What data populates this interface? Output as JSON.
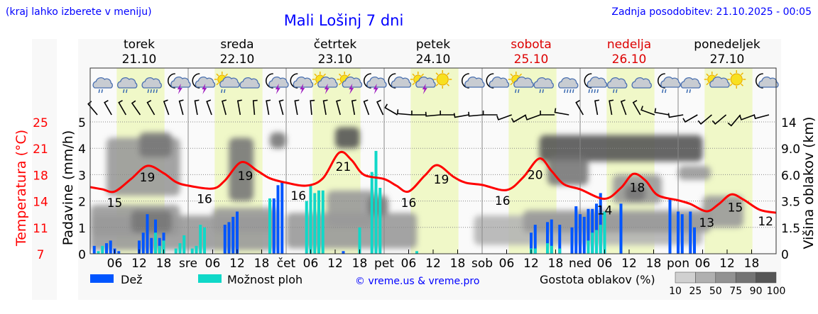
{
  "header": {
    "menu_hint": "(kraj lahko izberete v meniju)",
    "title": "Mali Lošinj 7 dni",
    "updated": "Zadnja posodobitev: 21.10.2025 - 00:05"
  },
  "colors": {
    "link": "#0000ff",
    "temp": "#ff0000",
    "rain": "#0055ff",
    "showers": "#10d8c8",
    "weekend": "#dd0000",
    "daylight": "#f0f8c8"
  },
  "days": [
    {
      "name": "torek",
      "date": "21.10",
      "abbr": "",
      "weekend": false
    },
    {
      "name": "sreda",
      "date": "22.10",
      "abbr": "sre",
      "weekend": false
    },
    {
      "name": "četrtek",
      "date": "23.10",
      "abbr": "čet",
      "weekend": false
    },
    {
      "name": "petek",
      "date": "24.10",
      "abbr": "pet",
      "weekend": false
    },
    {
      "name": "sobota",
      "date": "25.10",
      "abbr": "sob",
      "weekend": true
    },
    {
      "name": "nedelja",
      "date": "26.10",
      "abbr": "ned",
      "weekend": true
    },
    {
      "name": "ponedeljek",
      "date": "27.10",
      "abbr": "pon",
      "weekend": false
    }
  ],
  "chart_data": {
    "type": "line",
    "title": "Mali Lošinj 7 dni",
    "x_unit": "hours from 21.10 00:00",
    "xlim": [
      0,
      168
    ],
    "x_tick_hours": [
      "06",
      "12",
      "18"
    ],
    "axes": {
      "temp_label": "Temperatura (°C)",
      "temp_ticks": [
        "7",
        "11",
        "14",
        "18",
        "21",
        "25"
      ],
      "temp_range": [
        7,
        25
      ],
      "precip_label": "Padavine (mm/h)",
      "precip_ticks": [
        "0",
        "1",
        "2",
        "3",
        "4",
        "5"
      ],
      "precip_range": [
        0,
        5
      ],
      "cloud_label": "Višina oblakov (km)",
      "cloud_ticks": [
        "0",
        "1.5",
        "3.5",
        "6.0",
        "9.0",
        "14"
      ]
    },
    "daylight_hours": [
      6.5,
      18.2
    ],
    "temperature": [
      [
        0,
        16.1
      ],
      [
        3,
        15.8
      ],
      [
        6,
        15.5
      ],
      [
        10,
        17.2
      ],
      [
        14,
        19.0
      ],
      [
        18,
        18.0
      ],
      [
        21,
        16.8
      ],
      [
        24,
        16.3
      ],
      [
        30,
        15.9
      ],
      [
        33,
        17.0
      ],
      [
        37,
        19.5
      ],
      [
        41,
        18.3
      ],
      [
        44,
        17.3
      ],
      [
        48,
        16.7
      ],
      [
        53,
        16.3
      ],
      [
        57,
        17.3
      ],
      [
        61,
        20.8
      ],
      [
        64,
        19.8
      ],
      [
        67,
        17.8
      ],
      [
        72,
        17.2
      ],
      [
        75,
        16.3
      ],
      [
        78,
        15.5
      ],
      [
        82,
        17.7
      ],
      [
        85,
        19.1
      ],
      [
        89,
        17.5
      ],
      [
        92,
        16.7
      ],
      [
        96,
        16.4
      ],
      [
        102,
        15.7
      ],
      [
        106,
        17.4
      ],
      [
        110,
        20.0
      ],
      [
        113,
        18.3
      ],
      [
        116,
        16.5
      ],
      [
        120,
        15.8
      ],
      [
        126,
        14.5
      ],
      [
        130,
        16.0
      ],
      [
        133,
        17.9
      ],
      [
        136,
        17.0
      ],
      [
        139,
        15.0
      ],
      [
        144,
        14.3
      ],
      [
        147,
        13.8
      ],
      [
        151,
        12.8
      ],
      [
        154,
        13.8
      ],
      [
        157,
        15.1
      ],
      [
        160,
        14.4
      ],
      [
        164,
        13.0
      ],
      [
        168,
        12.6
      ]
    ],
    "temp_labels": [
      [
        6,
        15
      ],
      [
        14,
        19
      ],
      [
        28,
        16
      ],
      [
        38,
        19
      ],
      [
        51,
        16
      ],
      [
        62,
        21
      ],
      [
        78,
        16
      ],
      [
        86,
        19
      ],
      [
        101,
        16
      ],
      [
        109,
        20
      ],
      [
        126,
        14
      ],
      [
        134,
        18
      ],
      [
        151,
        13
      ],
      [
        158,
        15
      ],
      [
        168,
        12
      ]
    ],
    "precip_columns": "hour, total mm/h, showers mm/h",
    "precipitation": [
      [
        1,
        0.3,
        0
      ],
      [
        2,
        0.1,
        0.1
      ],
      [
        3,
        0.3,
        0.3
      ],
      [
        4,
        0.4,
        0
      ],
      [
        5,
        0.5,
        0
      ],
      [
        6,
        0.2,
        0
      ],
      [
        7,
        0.1,
        0
      ],
      [
        12,
        0.5,
        0
      ],
      [
        13,
        0.8,
        0
      ],
      [
        14,
        1.5,
        0
      ],
      [
        15,
        0.6,
        0
      ],
      [
        16,
        1.3,
        0.8
      ],
      [
        17,
        0.6,
        0.3
      ],
      [
        18,
        0.8,
        0.5
      ],
      [
        21,
        0.2,
        0.2
      ],
      [
        22,
        0.4,
        0.4
      ],
      [
        23,
        0.7,
        0.7
      ],
      [
        25,
        0.2,
        0.2
      ],
      [
        26,
        0.3,
        0.3
      ],
      [
        27,
        1.1,
        1.1
      ],
      [
        28,
        1.0,
        1.0
      ],
      [
        33,
        1.1,
        0
      ],
      [
        34,
        1.2,
        0
      ],
      [
        35,
        1.4,
        0
      ],
      [
        36,
        1.6,
        0
      ],
      [
        44,
        2.1,
        2.1
      ],
      [
        45,
        2.1,
        0
      ],
      [
        46,
        2.6,
        0
      ],
      [
        47,
        2.7,
        0
      ],
      [
        53,
        2.0,
        2.0
      ],
      [
        54,
        2.6,
        2.6
      ],
      [
        55,
        2.3,
        2.3
      ],
      [
        56,
        2.4,
        2.4
      ],
      [
        57,
        2.4,
        2.4
      ],
      [
        62,
        0.1,
        0
      ],
      [
        66,
        1.0,
        1.0
      ],
      [
        69,
        3.1,
        3.1
      ],
      [
        70,
        3.9,
        3.9
      ],
      [
        71,
        2.5,
        2.5
      ],
      [
        80,
        0.1,
        0.1
      ],
      [
        108,
        0.8,
        0.2
      ],
      [
        109,
        1.1,
        0.2
      ],
      [
        112,
        1.2,
        0.4
      ],
      [
        113,
        1.3,
        0.3
      ],
      [
        115,
        1.1,
        0.2
      ],
      [
        118,
        1.0,
        0
      ],
      [
        119,
        1.8,
        0
      ],
      [
        120,
        1.5,
        0
      ],
      [
        121,
        1.4,
        0
      ],
      [
        122,
        1.7,
        0.5
      ],
      [
        123,
        1.7,
        0.8
      ],
      [
        124,
        1.9,
        0.9
      ],
      [
        125,
        2.3,
        1.1
      ],
      [
        126,
        1.6,
        1.6
      ],
      [
        130,
        1.9,
        0
      ],
      [
        142,
        2.1,
        0
      ],
      [
        144,
        1.6,
        0
      ],
      [
        145,
        1.5,
        0
      ],
      [
        147,
        1.6,
        0
      ],
      [
        148,
        1.0,
        0
      ]
    ],
    "cloud_columns": "hour start, hour end, km low, km high, density %",
    "cloud_cover": [
      [
        0,
        46,
        0.2,
        2.4,
        50
      ],
      [
        0,
        22,
        1.0,
        3.2,
        60
      ],
      [
        10,
        20,
        1.2,
        2.8,
        80
      ],
      [
        4,
        22,
        4,
        11,
        55
      ],
      [
        12,
        20,
        8,
        12,
        85
      ],
      [
        34,
        40,
        3.5,
        11,
        85
      ],
      [
        30,
        46,
        1.2,
        3,
        60
      ],
      [
        48,
        80,
        0.3,
        2.6,
        50
      ],
      [
        58,
        70,
        1.5,
        4.5,
        60
      ],
      [
        60,
        66,
        9,
        13,
        90
      ],
      [
        68,
        73,
        2.4,
        4,
        80
      ],
      [
        44,
        48,
        9,
        12,
        75
      ],
      [
        94,
        150,
        0.5,
        2.4,
        45
      ],
      [
        106,
        152,
        1.2,
        2.8,
        50
      ],
      [
        110,
        150,
        7.5,
        11.5,
        90
      ],
      [
        112,
        122,
        5,
        8,
        75
      ],
      [
        128,
        140,
        3.3,
        6,
        70
      ],
      [
        131,
        136,
        3.5,
        5,
        85
      ],
      [
        144,
        152,
        5.5,
        7,
        50
      ],
      [
        150,
        160,
        1.5,
        4,
        55
      ]
    ],
    "weather_icons": [
      "cloud-rain",
      "cloud-rain",
      "cloud-heavy-rain",
      "moon-thunderstorm",
      "moon-thunderstorm",
      "sun-cloud-rain",
      "cloud",
      "moon-thunderstorm",
      "moon-thunderstorm",
      "sun-thunderstorm",
      "sun-thunderstorm",
      "moon-thunderstorm",
      "moon-cloud",
      "sun-thunderstorm",
      "sun",
      "moon-cloud",
      "moon-cloud",
      "sun-cloud-rain",
      "cloud-rain",
      "cloud-heavy-rain",
      "moon-heavy-rain",
      "cloud-rain",
      "cloud",
      "moon-rain",
      "cloud-rain",
      "sun-cloud",
      "sun",
      "moon-cloud"
    ],
    "wind_dir_deg": [
      320,
      330,
      330,
      325,
      330,
      340,
      345,
      350,
      340,
      345,
      350,
      355,
      350,
      345,
      350,
      355,
      350,
      345,
      350,
      340,
      335,
      300,
      275,
      270,
      265,
      270,
      260,
      265,
      270,
      250,
      240,
      250,
      270,
      280,
      330,
      350,
      350,
      340,
      330,
      290,
      280,
      260,
      240,
      230,
      230,
      220,
      250,
      255
    ],
    "legend": {
      "rain": "Dež",
      "showers": "Možnost ploh",
      "copyright": "© vreme.us & vreme.pro",
      "cloud_density": "Gostota oblakov (%)",
      "density_ticks": [
        "10",
        "25",
        "50",
        "75",
        "90",
        "100"
      ]
    }
  }
}
